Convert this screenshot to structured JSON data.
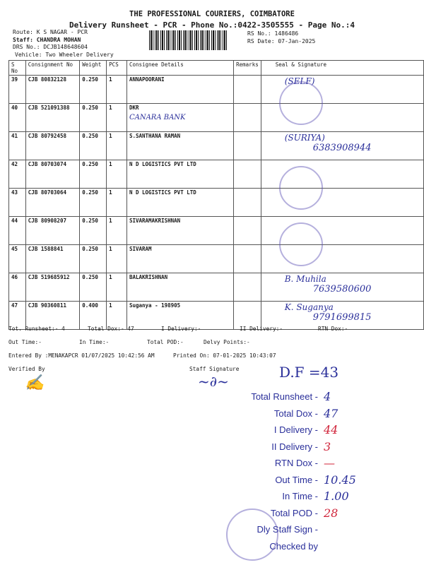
{
  "header": {
    "company": "THE PROFESSIONAL COURIERS, COIMBATORE",
    "subtitle": "Delivery Runsheet - PCR - Phone No.:0422-3505555 - Page No.:4",
    "route": "Route: K S NAGAR - PCR",
    "staff": "Staff: CHANDRA MOHAN",
    "drs": "DRS No.: DCJB148648604",
    "vehicle": "Vehicle: Two Wheeler Delivery",
    "rs_no": "RS No.: 1486486",
    "rs_date": "RS Date: 07-Jan-2025"
  },
  "table": {
    "columns": [
      "S No",
      "Consignment No",
      "Weight",
      "PCS",
      "Consignee Details",
      "Remarks",
      "Seal & Signature"
    ],
    "rows": [
      {
        "sno": "39",
        "cons": "CJB 80832128",
        "weight": "0.250",
        "pcs": "1",
        "consignee": "ANNAPOORANI",
        "note": "",
        "sign": "(SELF)",
        "phone": ""
      },
      {
        "sno": "40",
        "cons": "CJB 521091388",
        "weight": "0.250",
        "pcs": "1",
        "consignee": "DKR",
        "note": "CANARA BANK",
        "sign": "",
        "phone": ""
      },
      {
        "sno": "41",
        "cons": "CJB 80792458",
        "weight": "0.250",
        "pcs": "1",
        "consignee": "S.SANTHANA RAMAN",
        "note": "",
        "sign": "(SURIYA)",
        "phone": "6383908944"
      },
      {
        "sno": "42",
        "cons": "CJB 80703074",
        "weight": "0.250",
        "pcs": "1",
        "consignee": "N D LOGISTICS PVT LTD",
        "note": "",
        "sign": "",
        "phone": ""
      },
      {
        "sno": "43",
        "cons": "CJB 80703064",
        "weight": "0.250",
        "pcs": "1",
        "consignee": "N D LOGISTICS PVT LTD",
        "note": "",
        "sign": "",
        "phone": ""
      },
      {
        "sno": "44",
        "cons": "CJB 80908207",
        "weight": "0.250",
        "pcs": "1",
        "consignee": "SIVARAMAKRISHNAN",
        "note": "",
        "sign": "",
        "phone": ""
      },
      {
        "sno": "45",
        "cons": "CJB 1588841",
        "weight": "0.250",
        "pcs": "1",
        "consignee": "SIVARAM",
        "note": "",
        "sign": "",
        "phone": ""
      },
      {
        "sno": "46",
        "cons": "CJB 519685912",
        "weight": "0.250",
        "pcs": "1",
        "consignee": "BALAKRISHNAN",
        "note": "",
        "sign": "B. Muhila",
        "phone": "7639580600"
      },
      {
        "sno": "47",
        "cons": "CJB 90360811",
        "weight": "0.400",
        "pcs": "1",
        "consignee": "Suganya - 198905",
        "note": "",
        "sign": "K. Suganya",
        "phone": "9791699815"
      }
    ]
  },
  "footer": {
    "tot_runsheet": "Tot. Runsheet:- 4",
    "total_dox": "Total Dox:-   47",
    "i_delivery": "I Delivery:-",
    "ii_delivery": "II Delivery:-",
    "rtn_dox": "RTN Dox:-",
    "out_time": "Out Time:-",
    "in_time": "In Time:-",
    "total_pod": "Total POD:-",
    "delvy_points": "Delvy Points:-",
    "entered_by": "Entered By :MENAKAPCR 01/07/2025 10:42:56 AM",
    "printed_on": "Printed On: 07-01-2025 10:43:07",
    "verified_by": "Verified By",
    "staff_signature": "Staff Signature"
  },
  "annotations": {
    "df": "D.F =43",
    "stamp": [
      {
        "label": "Total Runsheet -",
        "value": "4",
        "red": false
      },
      {
        "label": "Total Dox -",
        "value": "47",
        "red": false
      },
      {
        "label": "I Delivery -",
        "value": "44",
        "red": true
      },
      {
        "label": "II Delivery -",
        "value": "3",
        "red": true
      },
      {
        "label": "RTN Dox -",
        "value": "—",
        "red": true
      },
      {
        "label": "Out Time  -",
        "value": "10.45",
        "red": false
      },
      {
        "label": "In Time  -",
        "value": "1.00",
        "red": false
      },
      {
        "label": "Total POD  -",
        "value": "28",
        "red": true
      },
      {
        "label": "Dly Staff Sign  -",
        "value": "",
        "red": false
      },
      {
        "label": "Checked by",
        "value": "",
        "red": false
      }
    ]
  },
  "colors": {
    "ink_blue": "#2a2f9a",
    "ink_red": "#d0243a"
  }
}
